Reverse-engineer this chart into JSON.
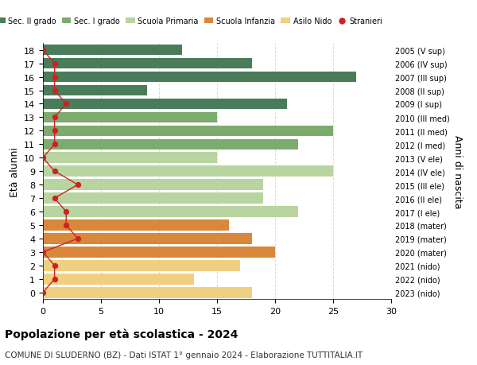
{
  "ages": [
    18,
    17,
    16,
    15,
    14,
    13,
    12,
    11,
    10,
    9,
    8,
    7,
    6,
    5,
    4,
    3,
    2,
    1,
    0
  ],
  "right_labels": [
    "2005 (V sup)",
    "2006 (IV sup)",
    "2007 (III sup)",
    "2008 (II sup)",
    "2009 (I sup)",
    "2010 (III med)",
    "2011 (II med)",
    "2012 (I med)",
    "2013 (V ele)",
    "2014 (IV ele)",
    "2015 (III ele)",
    "2016 (II ele)",
    "2017 (I ele)",
    "2018 (mater)",
    "2019 (mater)",
    "2020 (mater)",
    "2021 (nido)",
    "2022 (nido)",
    "2023 (nido)"
  ],
  "bar_values": [
    12,
    18,
    27,
    9,
    21,
    15,
    25,
    22,
    15,
    25,
    19,
    19,
    22,
    16,
    18,
    20,
    17,
    13,
    18
  ],
  "bar_colors": [
    "#4a7c59",
    "#4a7c59",
    "#4a7c59",
    "#4a7c59",
    "#4a7c59",
    "#7dab6e",
    "#7dab6e",
    "#7dab6e",
    "#b8d4a0",
    "#b8d4a0",
    "#b8d4a0",
    "#b8d4a0",
    "#b8d4a0",
    "#d9873b",
    "#d9873b",
    "#d9873b",
    "#f0d080",
    "#f0d080",
    "#f0d080"
  ],
  "stranieri_values": [
    0,
    1,
    1,
    1,
    2,
    1,
    1,
    1,
    0,
    1,
    3,
    1,
    2,
    2,
    3,
    0,
    1,
    1,
    0
  ],
  "title": "Popolazione per età scolastica - 2024",
  "subtitle": "COMUNE DI SLUDERNO (BZ) - Dati ISTAT 1° gennaio 2024 - Elaborazione TUTTITALIA.IT",
  "ylabel": "Età alunni",
  "right_ylabel": "Anni di nascita",
  "xlim": [
    0,
    30
  ],
  "xticks": [
    0,
    5,
    10,
    15,
    20,
    25,
    30
  ],
  "legend_labels": [
    "Sec. II grado",
    "Sec. I grado",
    "Scuola Primaria",
    "Scuola Infanzia",
    "Asilo Nido",
    "Stranieri"
  ],
  "legend_colors": [
    "#4a7c59",
    "#7dab6e",
    "#b8d4a0",
    "#d9873b",
    "#f0d080",
    "#cc2222"
  ],
  "stranieri_line_color": "#cc2222",
  "background_color": "#ffffff",
  "grid_color": "#dddddd"
}
